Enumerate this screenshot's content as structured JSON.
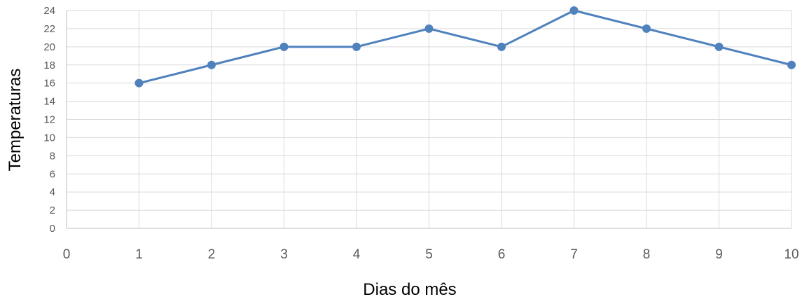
{
  "chart_data": {
    "type": "scatter",
    "title": "",
    "xlabel": "Dias do mês",
    "ylabel": "Temperaturas",
    "xlim": [
      0,
      10
    ],
    "ylim": [
      0,
      24
    ],
    "x_ticks": [
      "0",
      "1",
      "2",
      "3",
      "4",
      "5",
      "6",
      "7",
      "8",
      "9",
      "10"
    ],
    "y_ticks": [
      "0",
      "2",
      "4",
      "6",
      "8",
      "10",
      "12",
      "14",
      "16",
      "18",
      "20",
      "22",
      "24"
    ],
    "grid": true,
    "legend": "none",
    "series": [
      {
        "color": "#4f81bd",
        "marker": "circle",
        "line": "straight",
        "x": [
          1,
          2,
          3,
          4,
          5,
          6,
          7,
          8,
          9,
          10
        ],
        "y": [
          16,
          18,
          20,
          20,
          22,
          20,
          24,
          22,
          20,
          18
        ]
      }
    ]
  }
}
